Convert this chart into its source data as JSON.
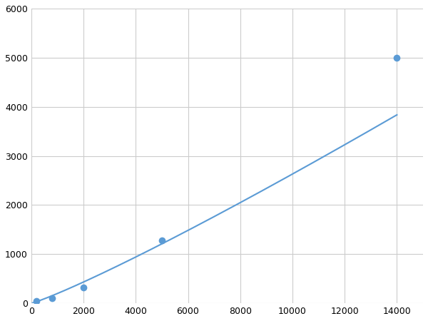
{
  "x": [
    200,
    800,
    2000,
    5000,
    14000
  ],
  "y": [
    50,
    100,
    320,
    1280,
    5000
  ],
  "line_color": "#5b9bd5",
  "marker_color": "#5b9bd5",
  "marker_size": 7,
  "line_width": 1.5,
  "xlim": [
    0,
    15000
  ],
  "ylim": [
    0,
    6000
  ],
  "xticks": [
    0,
    2000,
    4000,
    6000,
    8000,
    10000,
    12000,
    14000
  ],
  "yticks": [
    0,
    1000,
    2000,
    3000,
    4000,
    5000,
    6000
  ],
  "grid_color": "#cccccc",
  "background_color": "#ffffff",
  "tick_label_size": 9
}
